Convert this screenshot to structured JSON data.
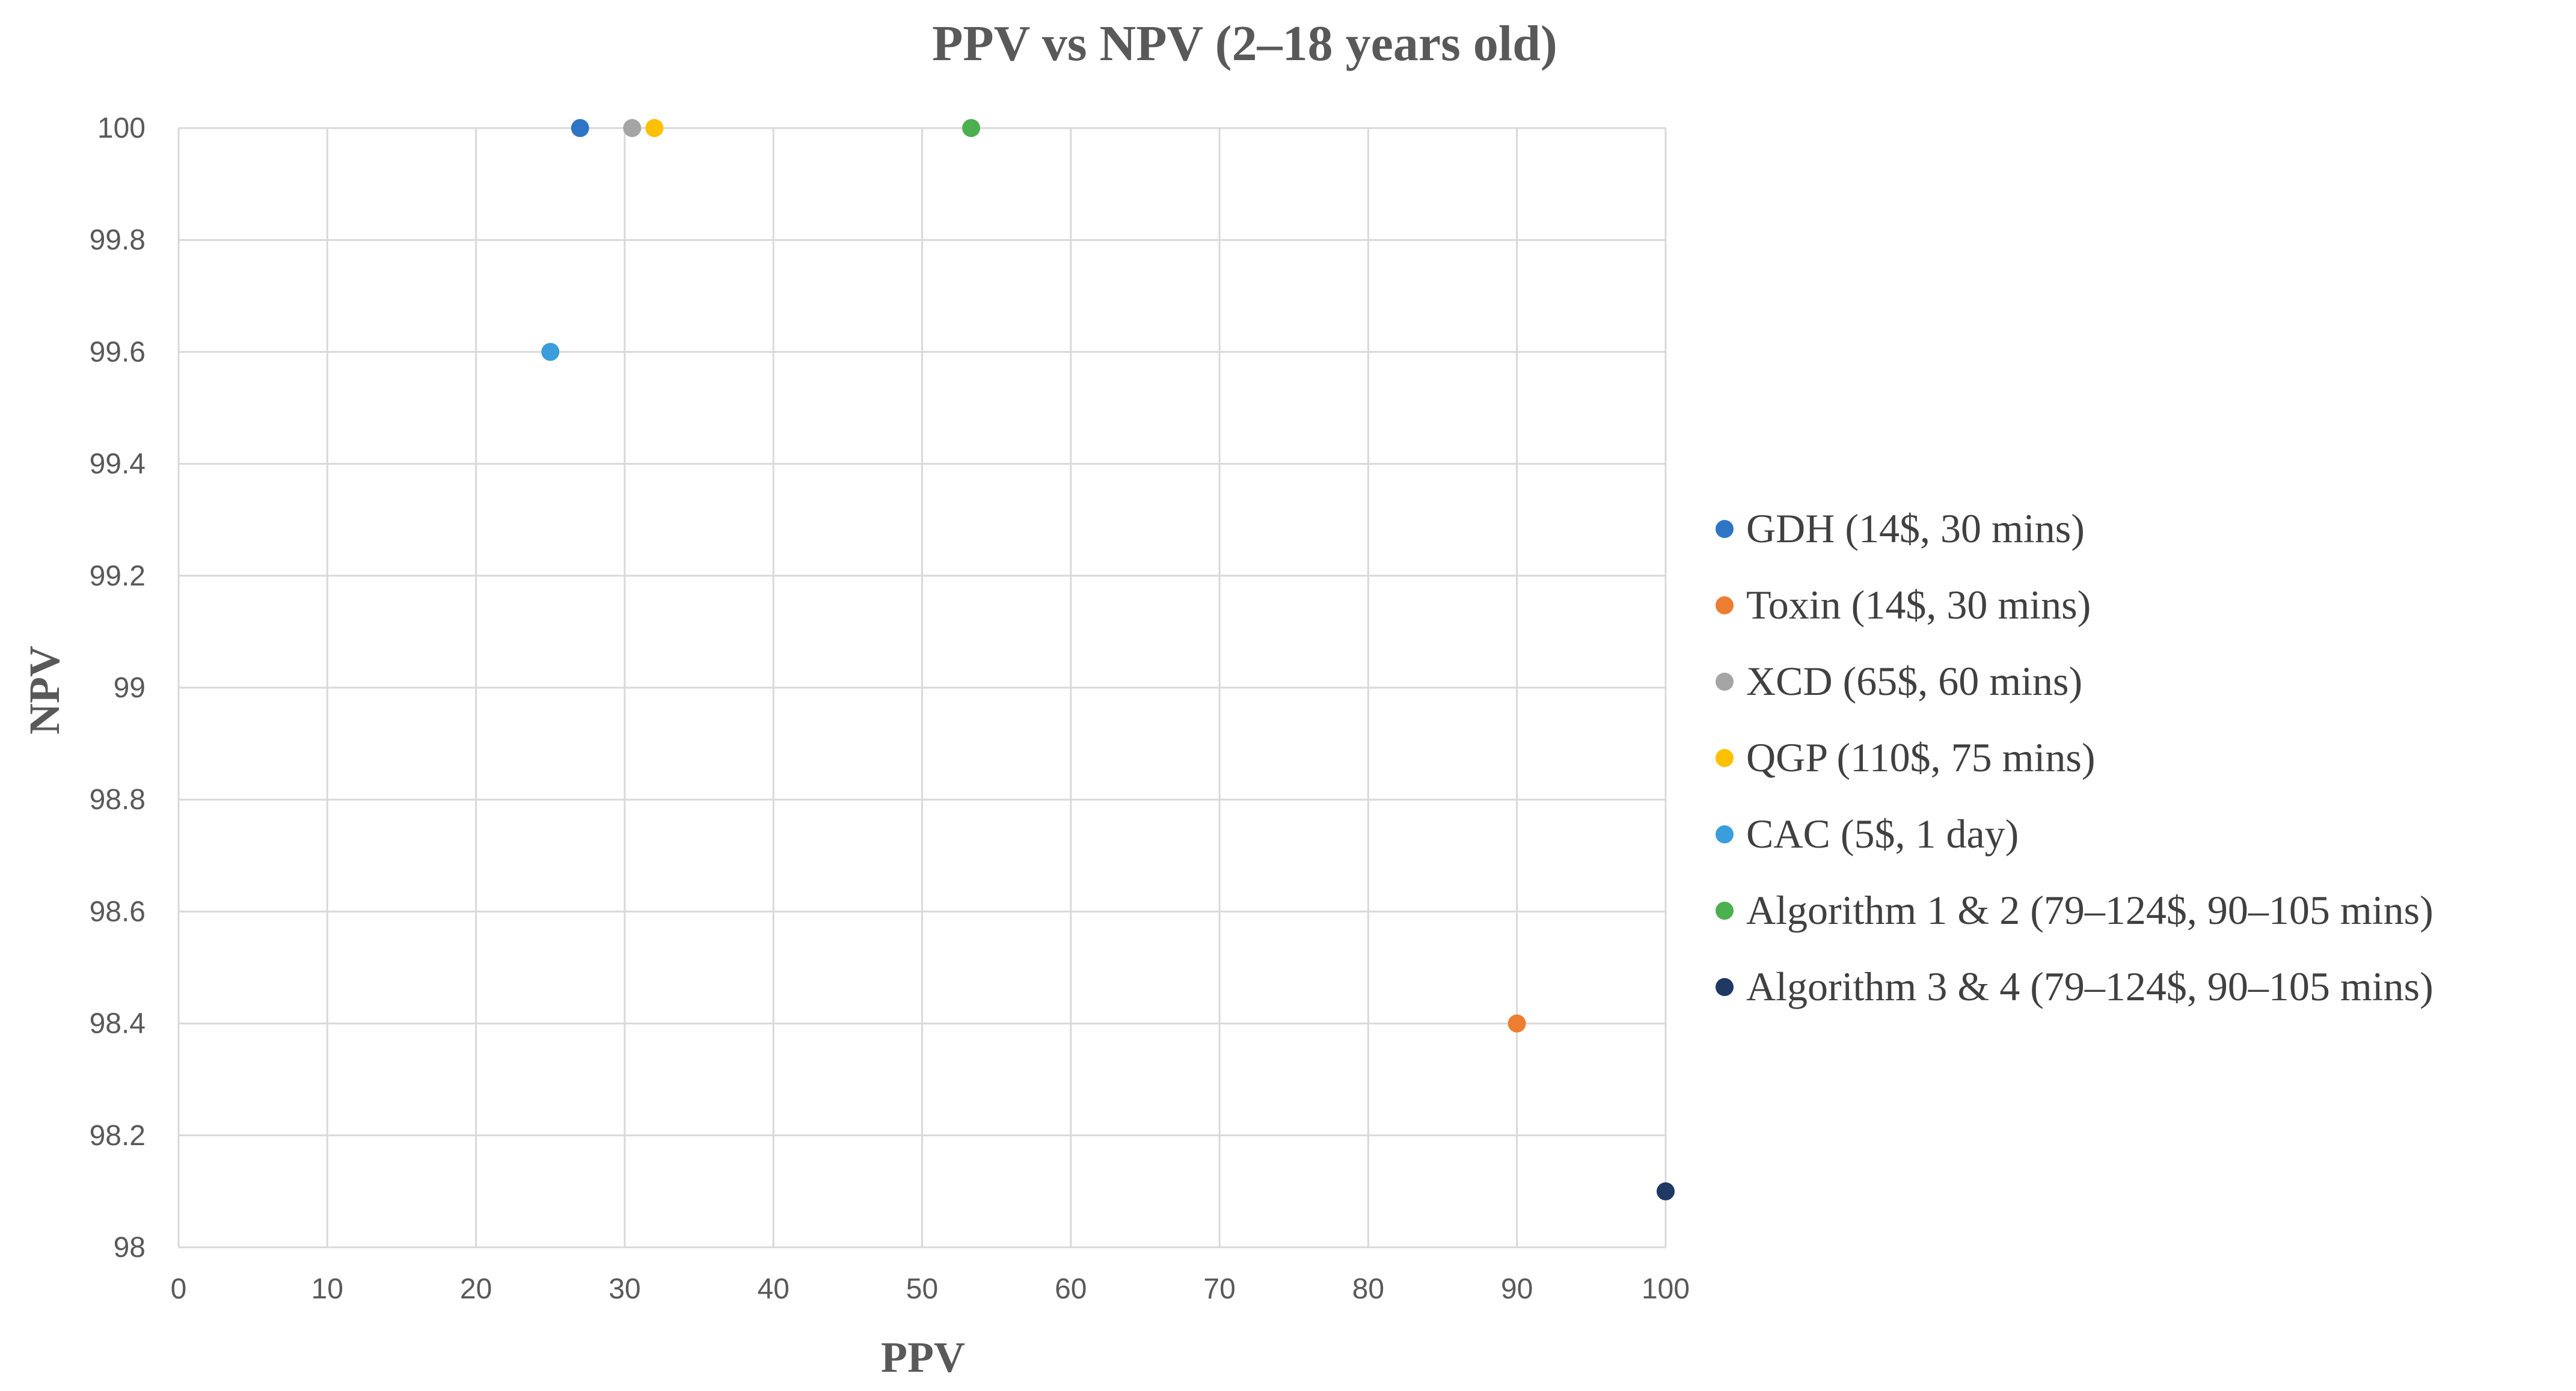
{
  "chart_data": {
    "type": "scatter",
    "title": "PPV vs NPV (2–18 years old)",
    "xlabel": "PPV",
    "ylabel": "NPV",
    "xlim": [
      0,
      100
    ],
    "ylim": [
      98,
      100
    ],
    "x_ticks": [
      0,
      10,
      20,
      30,
      40,
      50,
      60,
      70,
      80,
      90,
      100
    ],
    "y_ticks": [
      98,
      98.2,
      98.4,
      98.6,
      98.8,
      99,
      99.2,
      99.4,
      99.6,
      99.8,
      100
    ],
    "x_tick_labels": [
      "0",
      "10",
      "20",
      "30",
      "40",
      "50",
      "60",
      "70",
      "80",
      "90",
      "100"
    ],
    "y_tick_labels": [
      "98",
      "98.2",
      "98.4",
      "98.6",
      "98.8",
      "99",
      "99.2",
      "99.4",
      "99.6",
      "99.8",
      "100"
    ],
    "grid": true,
    "legend_position": "right",
    "series": [
      {
        "name": "GDH (14$, 30 mins)",
        "color": "#2E75C6",
        "points": [
          {
            "x": 27,
            "y": 100
          }
        ]
      },
      {
        "name": "Toxin (14$, 30 mins)",
        "color": "#ED7D31",
        "points": [
          {
            "x": 90,
            "y": 98.4
          }
        ]
      },
      {
        "name": "XCD  (65$, 60 mins)",
        "color": "#A5A5A5",
        "points": [
          {
            "x": 30.5,
            "y": 100
          }
        ]
      },
      {
        "name": "QGP (110$, 75 mins)",
        "color": "#FFC000",
        "points": [
          {
            "x": 32,
            "y": 100
          }
        ]
      },
      {
        "name": "CAC (5$, 1 day)",
        "color": "#3B9DDB",
        "points": [
          {
            "x": 25,
            "y": 99.6
          }
        ]
      },
      {
        "name": "Algorithm 1 & 2 (79–124$, 90–105 mins)",
        "color": "#4CAF50",
        "points": [
          {
            "x": 53.3,
            "y": 100
          }
        ]
      },
      {
        "name": "Algorithm 3 & 4  (79–124$, 90–105 mins)",
        "color": "#1F3864",
        "points": [
          {
            "x": 100,
            "y": 98.1
          }
        ]
      }
    ]
  }
}
